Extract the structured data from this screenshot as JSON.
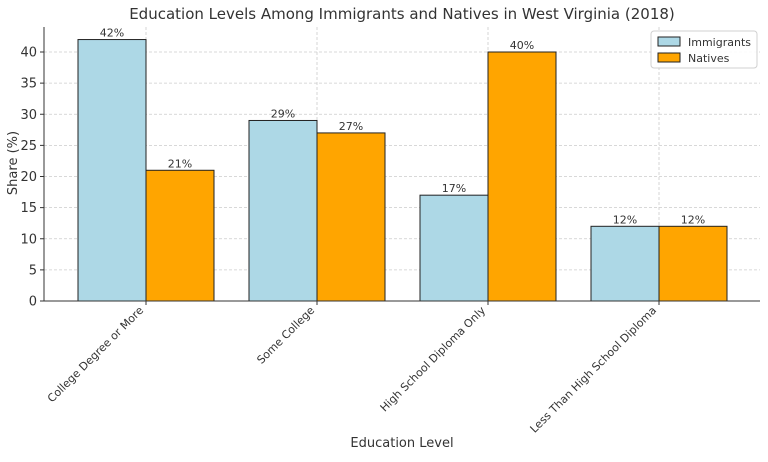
{
  "chart_data": {
    "type": "bar",
    "title": "Education Levels Among Immigrants and Natives in West Virginia (2018)",
    "xlabel": "Education Level",
    "ylabel": "Share (%)",
    "categories": [
      "College Degree or More",
      "Some College",
      "High School Diploma Only",
      "Less Than High School Diploma"
    ],
    "series": [
      {
        "name": "Immigrants",
        "color": "#add8e6",
        "values": [
          42,
          29,
          17,
          12
        ],
        "labels": [
          "42%",
          "29%",
          "17%",
          "12%"
        ]
      },
      {
        "name": "Natives",
        "color": "#ffa500",
        "values": [
          21,
          27,
          40,
          12
        ],
        "labels": [
          "21%",
          "27%",
          "40%",
          "12%"
        ]
      }
    ],
    "ylim": [
      0,
      44
    ],
    "yticks": [
      0,
      5,
      10,
      15,
      20,
      25,
      30,
      35,
      40
    ],
    "grid": true,
    "legend_position": "upper right"
  }
}
